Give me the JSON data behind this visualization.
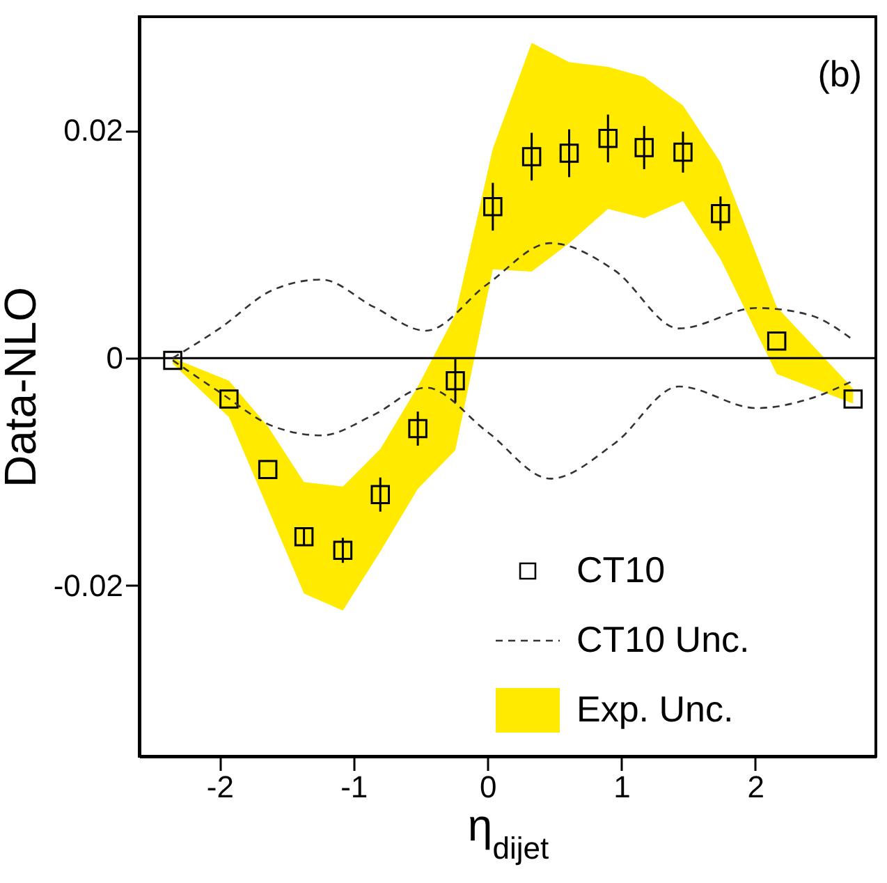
{
  "chart_data": {
    "type": "scatter",
    "xlabel": "η$_{dijet}$",
    "ylabel": "Data-NLO",
    "annotations": [
      "(b)"
    ],
    "xlim": [
      -2.6,
      2.9
    ],
    "ylim": [
      -0.035,
      0.03
    ],
    "xticks": [
      -2,
      -1,
      0,
      1,
      2
    ],
    "yticks": [
      -0.02,
      0,
      0.02
    ],
    "ref_lines": [
      {
        "axis": "y",
        "value": 0,
        "color": "#000000"
      }
    ],
    "legend": "bottom right",
    "series": [
      {
        "name": "CT10",
        "marker": "square",
        "color": "#000000",
        "x": [
          -2.35,
          -1.93,
          -1.64,
          -1.37,
          -1.08,
          -0.8,
          -0.52,
          -0.24,
          0.04,
          0.33,
          0.61,
          0.9,
          1.17,
          1.46,
          1.74,
          2.16,
          2.73
        ],
        "values": [
          -0.0002,
          -0.0036,
          -0.0098,
          -0.0157,
          -0.0169,
          -0.012,
          -0.0062,
          -0.002,
          0.0133,
          0.0177,
          0.018,
          0.0193,
          0.0185,
          0.0181,
          0.0127,
          0.0015,
          -0.0036
        ],
        "errors": [
          null,
          null,
          null,
          0.0008,
          0.0011,
          0.0015,
          0.0015,
          0.0019,
          0.0021,
          0.0021,
          0.0021,
          0.0021,
          0.0019,
          0.0018,
          0.0015,
          null,
          null
        ]
      },
      {
        "name": "CT10 Unc.",
        "type": "line",
        "line_style": "dashed",
        "color": "#333333",
        "x": [
          -2.35,
          -2.0,
          -1.6,
          -1.24,
          -0.85,
          -0.46,
          0.0,
          0.47,
          0.95,
          1.43,
          2.01,
          2.4,
          2.73
        ],
        "values": [
          0.0,
          0.0026,
          0.006,
          0.0069,
          0.0045,
          0.0024,
          0.0065,
          0.0101,
          0.0077,
          0.0026,
          0.0044,
          0.0038,
          0.0016
        ]
      },
      {
        "type": "line",
        "line_style": "dashed",
        "color": "#333333",
        "x": [
          -2.35,
          -2.0,
          -1.6,
          -1.24,
          -0.85,
          -0.46,
          0.0,
          0.47,
          0.95,
          1.43,
          2.01,
          2.4,
          2.73
        ],
        "values": [
          -0.0002,
          -0.003,
          -0.006,
          -0.0068,
          -0.005,
          -0.0026,
          -0.0065,
          -0.0106,
          -0.0075,
          -0.0025,
          -0.0044,
          -0.0036,
          -0.002
        ]
      },
      {
        "name": "Exp. Unc.",
        "type": "area",
        "color": "#ffea00",
        "x": [
          -2.35,
          -1.93,
          -1.64,
          -1.37,
          -1.08,
          -0.8,
          -0.52,
          -0.24,
          0.04,
          0.33,
          0.61,
          0.9,
          1.17,
          1.46,
          1.74,
          2.16,
          2.73
        ],
        "values": [
          null,
          null,
          null,
          null,
          null,
          null,
          null,
          null,
          null,
          null,
          null,
          null,
          null,
          null,
          null,
          null,
          null
        ],
        "lower": [
          -0.0005,
          -0.0052,
          -0.0132,
          -0.0207,
          -0.0222,
          -0.017,
          -0.0115,
          -0.0081,
          0.0078,
          0.0076,
          0.0101,
          0.0131,
          0.0123,
          0.0138,
          0.0087,
          -0.0014,
          -0.004
        ],
        "upper": [
          0.0,
          -0.002,
          -0.006,
          -0.0109,
          -0.0113,
          -0.008,
          -0.0025,
          0.0038,
          0.0184,
          0.0277,
          0.026,
          0.0256,
          0.0247,
          0.0222,
          0.0172,
          0.0045,
          -0.0027
        ]
      }
    ]
  }
}
